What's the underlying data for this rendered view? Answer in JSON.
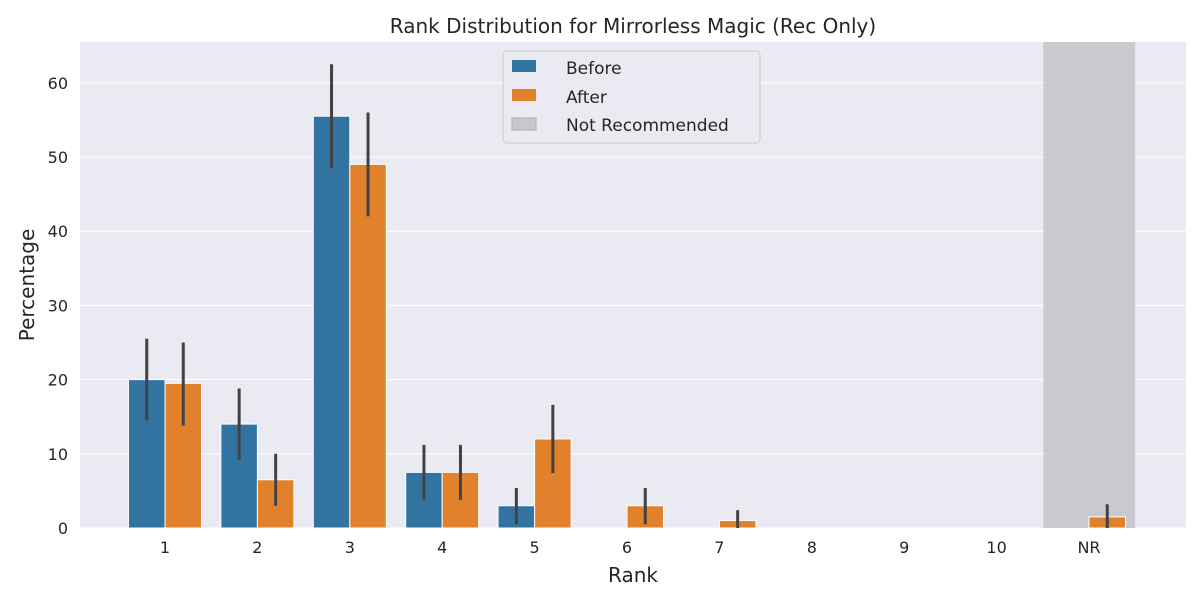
{
  "chart_data": {
    "type": "bar",
    "title": "Rank Distribution for Mirrorless Magic (Rec Only)",
    "xlabel": "Rank",
    "ylabel": "Percentage",
    "categories": [
      "1",
      "2",
      "3",
      "4",
      "5",
      "6",
      "7",
      "8",
      "9",
      "10",
      "NR"
    ],
    "ylim": [
      0,
      65.5
    ],
    "yticks": [
      0,
      10,
      20,
      30,
      40,
      50,
      60
    ],
    "grid": true,
    "legend_position": "top-center",
    "series": [
      {
        "name": "Before",
        "color": "#3274a1",
        "values": [
          20,
          14,
          55.5,
          7.5,
          3,
          0,
          0,
          0,
          0,
          0,
          0
        ],
        "ci": [
          [
            14.5,
            25.5
          ],
          [
            9.2,
            18.8
          ],
          [
            48.5,
            62.5
          ],
          [
            3.8,
            11.2
          ],
          [
            0.5,
            5.4
          ],
          null,
          null,
          null,
          null,
          null,
          null
        ]
      },
      {
        "name": "After",
        "color": "#e1812c",
        "values": [
          19.5,
          6.5,
          49,
          7.5,
          12,
          3,
          1,
          0,
          0,
          0,
          1.5
        ],
        "ci": [
          [
            13.8,
            25
          ],
          [
            3,
            10
          ],
          [
            42,
            56
          ],
          [
            3.8,
            11.2
          ],
          [
            7.4,
            16.6
          ],
          [
            0.5,
            5.4
          ],
          [
            0,
            2.4
          ],
          null,
          null,
          null,
          [
            0,
            3.2
          ]
        ]
      }
    ],
    "highlight": {
      "category": "NR",
      "label": "Not Recommended",
      "color": "#c8c7cc"
    },
    "colors": {
      "plot_background": "#eaeaf2",
      "grid": "#ffffff",
      "error_bar": "#424242"
    }
  }
}
